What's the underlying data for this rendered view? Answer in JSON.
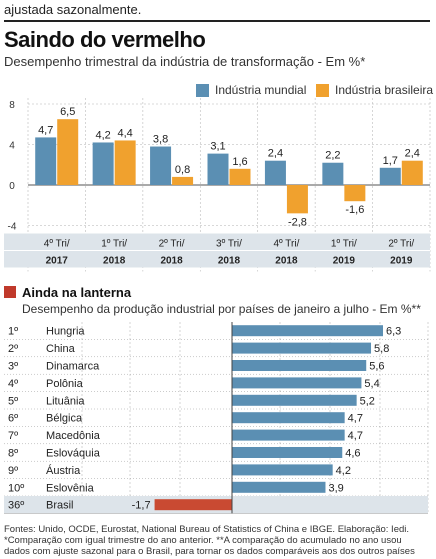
{
  "top_snippet": "ajustada sazonalmente.",
  "title": "Saindo do vermelho",
  "subtitle": "Desempenho trimestral da indústria de transformação - Em %*",
  "colors": {
    "world": "#5b8fb3",
    "brazil": "#f0a12e",
    "negative_bar": "#c94a32",
    "section_mark": "#c0392b",
    "band": "#dde4ea"
  },
  "chart_data": [
    {
      "type": "bar",
      "title": "Saindo do vermelho",
      "subtitle": "Desempenho trimestral da indústria de transformação - Em %*",
      "legend_position": "top-right",
      "grid": true,
      "ylim": [
        -4,
        8
      ],
      "yticks": [
        "8",
        "4",
        "0",
        "-4"
      ],
      "categories": [
        {
          "quarter": "4º Tri/",
          "year": "2017"
        },
        {
          "quarter": "1º Tri/",
          "year": "2018"
        },
        {
          "quarter": "2º Tri/",
          "year": "2018"
        },
        {
          "quarter": "3º Tri/",
          "year": "2018"
        },
        {
          "quarter": "4º Tri/",
          "year": "2018"
        },
        {
          "quarter": "1º Tri/",
          "year": "2019"
        },
        {
          "quarter": "2º Tri/",
          "year": "2019"
        }
      ],
      "series": [
        {
          "name": "Indústria mundial",
          "values": [
            4.7,
            4.2,
            3.8,
            3.1,
            2.4,
            2.2,
            1.7
          ],
          "labels": [
            "4,7",
            "4,2",
            "3,8",
            "3,1",
            "2,4",
            "2,2",
            "1,7"
          ]
        },
        {
          "name": "Indústria brasileira",
          "values": [
            6.5,
            4.4,
            0.8,
            1.6,
            -2.8,
            -1.6,
            2.4
          ],
          "labels": [
            "6,5",
            "4,4",
            "0,8",
            "1,6",
            "-2,8",
            "-1,6",
            "2,4"
          ]
        }
      ]
    },
    {
      "type": "bar",
      "orientation": "horizontal",
      "title": "Ainda na lanterna",
      "subtitle": "Desempenho da produção industrial por países de janeiro a julho - Em %**",
      "grid": true,
      "rows": [
        {
          "rank": "1º",
          "country": "Hungria",
          "value": 6.3,
          "label": "6,3"
        },
        {
          "rank": "2º",
          "country": "China",
          "value": 5.8,
          "label": "5,8"
        },
        {
          "rank": "3º",
          "country": "Dinamarca",
          "value": 5.6,
          "label": "5,6"
        },
        {
          "rank": "4º",
          "country": "Polônia",
          "value": 5.4,
          "label": "5,4"
        },
        {
          "rank": "5º",
          "country": "Lituânia",
          "value": 5.2,
          "label": "5,2"
        },
        {
          "rank": "6º",
          "country": "Bélgica",
          "value": 4.7,
          "label": "4,7"
        },
        {
          "rank": "7º",
          "country": "Macedônia",
          "value": 4.7,
          "label": "4,7"
        },
        {
          "rank": "8º",
          "country": "Eslováquia",
          "value": 4.6,
          "label": "4,6"
        },
        {
          "rank": "9º",
          "country": "Áustria",
          "value": 4.2,
          "label": "4,2"
        },
        {
          "rank": "10º",
          "country": "Eslovênia",
          "value": 3.9,
          "label": "3,9"
        },
        {
          "rank": "36º",
          "country": "Brasil",
          "value": -1.7,
          "label": "-1,7",
          "highlight": true
        }
      ]
    }
  ],
  "section2": {
    "title": "Ainda na lanterna",
    "subtitle": "Desempenho da produção industrial por países de janeiro a julho - Em %**"
  },
  "footnote": "Fontes: Unido, OCDE, Eurostat, National Bureau of Statistics of China e IBGE. Elaboração: Iedi. *Comparação com igual trimestre do ano anterior. **A comparação do acumulado no ano usou dados com ajuste sazonal para o Brasil, para tornar os dados comparáveis aos dos outros países"
}
